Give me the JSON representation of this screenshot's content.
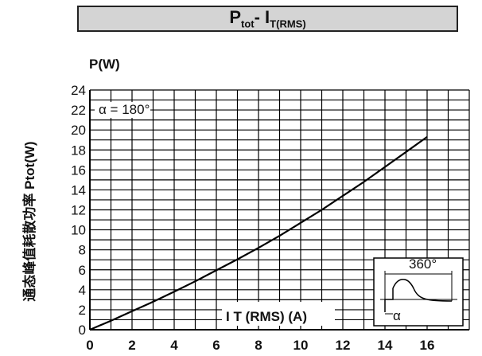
{
  "title": {
    "main": "P",
    "main_sub": "tot",
    "sep": "- I",
    "sep_sub": "T(RMS)"
  },
  "chart_data": {
    "type": "line",
    "ylabel_top": "P(W)",
    "ylabel_side": "通态峰值耗散功率 Ptot(W)",
    "xlabel": "I T (RMS) (A)",
    "xlim": [
      0,
      18
    ],
    "ylim": [
      0,
      24
    ],
    "x_ticks": [
      0,
      2,
      4,
      6,
      8,
      10,
      12,
      14,
      16
    ],
    "y_ticks": [
      0,
      2,
      4,
      6,
      8,
      10,
      12,
      14,
      16,
      18,
      20,
      22,
      24
    ],
    "grid": true,
    "series": [
      {
        "name": "α = 180°",
        "x": [
          0,
          1,
          2,
          3,
          4,
          5,
          6,
          7,
          8,
          9,
          10,
          11,
          12,
          13,
          14,
          15,
          16
        ],
        "y": [
          0,
          0.9,
          1.85,
          2.8,
          3.8,
          4.85,
          5.95,
          7.05,
          8.2,
          9.4,
          10.7,
          12.0,
          13.4,
          14.8,
          16.3,
          17.8,
          19.3
        ]
      }
    ],
    "inset": {
      "label_top": "360°",
      "label_alpha": "α"
    },
    "colors": {
      "line": "#000000",
      "grid": "#000000",
      "title_bg": "#d4d4d4"
    }
  }
}
